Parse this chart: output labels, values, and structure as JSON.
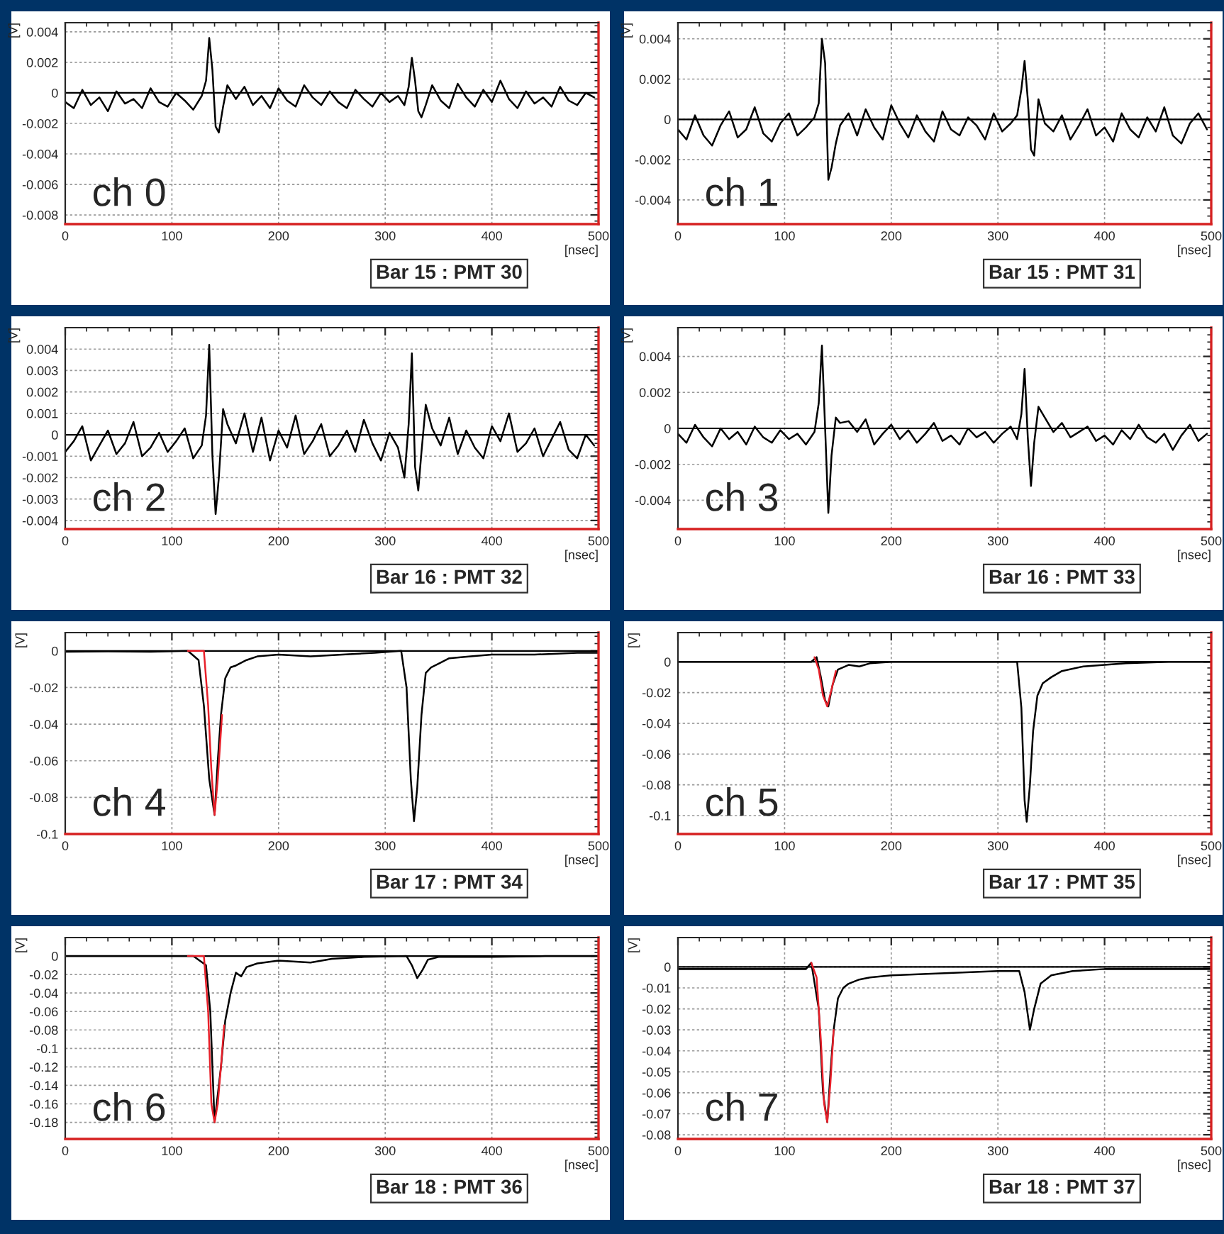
{
  "chart_data": [
    {
      "type": "line",
      "title": "Bar 15 : PMT 30",
      "xlabel": "[nsec]",
      "ylabel": "[V]",
      "annotations": [
        "ch 0"
      ],
      "grid": true,
      "legend": false,
      "xlim": [
        0,
        500
      ],
      "xticks": [
        0,
        100,
        200,
        300,
        400,
        500
      ],
      "ylim": [
        -0.0086,
        0.0046
      ],
      "yticks": [
        -0.008,
        -0.006,
        -0.004,
        -0.002,
        0,
        0.002,
        0.004
      ],
      "ref_lines": [
        {
          "axis": "y",
          "value": 0
        }
      ],
      "x": [
        0,
        8,
        16,
        24,
        32,
        40,
        48,
        56,
        64,
        72,
        80,
        88,
        96,
        104,
        112,
        120,
        128,
        132,
        135,
        138,
        141,
        144,
        148,
        152,
        160,
        168,
        176,
        184,
        192,
        200,
        208,
        216,
        224,
        232,
        240,
        248,
        256,
        264,
        272,
        280,
        288,
        296,
        304,
        312,
        318,
        322,
        325,
        328,
        331,
        334,
        338,
        344,
        352,
        360,
        368,
        376,
        384,
        392,
        400,
        408,
        416,
        424,
        432,
        440,
        448,
        456,
        464,
        472,
        480,
        488,
        496
      ],
      "series": [
        {
          "type": "line",
          "color": "#000000",
          "values": [
            -0.0006,
            -0.001,
            0.0002,
            -0.0008,
            -0.0003,
            -0.0012,
            0.0001,
            -0.0007,
            -0.0004,
            -0.001,
            0.0003,
            -0.0006,
            -0.0009,
            0.0,
            -0.0005,
            -0.0011,
            -0.0002,
            0.0008,
            0.0036,
            0.0015,
            -0.0022,
            -0.0026,
            -0.0009,
            0.0005,
            -0.0004,
            0.0004,
            -0.0008,
            -0.0002,
            -0.001,
            0.0003,
            -0.0005,
            -0.0009,
            0.0005,
            -0.0003,
            -0.0008,
            0.0001,
            -0.0006,
            -0.001,
            0.0002,
            -0.0004,
            -0.0009,
            0.0,
            -0.0006,
            -0.0002,
            -0.0008,
            0.0004,
            0.0023,
            0.0008,
            -0.0012,
            -0.0016,
            -0.0008,
            0.0005,
            -0.0005,
            -0.001,
            0.0006,
            -0.0003,
            -0.0009,
            0.0002,
            -0.0006,
            0.0008,
            -0.0004,
            -0.001,
            0.0001,
            -0.0007,
            -0.0003,
            -0.0009,
            0.0004,
            -0.0005,
            -0.0008,
            0.0,
            -0.0003
          ]
        }
      ]
    },
    {
      "type": "line",
      "title": "Bar 15 : PMT 31",
      "xlabel": "[nsec]",
      "ylabel": "[V]",
      "annotations": [
        "ch 1"
      ],
      "grid": true,
      "legend": false,
      "xlim": [
        0,
        500
      ],
      "xticks": [
        0,
        100,
        200,
        300,
        400,
        500
      ],
      "ylim": [
        -0.0052,
        0.0048
      ],
      "yticks": [
        -0.004,
        -0.002,
        0,
        0.002,
        0.004
      ],
      "ref_lines": [
        {
          "axis": "y",
          "value": 0
        }
      ],
      "x": [
        0,
        8,
        16,
        24,
        32,
        40,
        48,
        56,
        64,
        72,
        80,
        88,
        96,
        104,
        112,
        120,
        128,
        132,
        135,
        138,
        141,
        144,
        148,
        152,
        160,
        168,
        176,
        184,
        192,
        200,
        208,
        216,
        224,
        232,
        240,
        248,
        256,
        264,
        272,
        280,
        288,
        296,
        304,
        312,
        318,
        322,
        325,
        328,
        331,
        334,
        338,
        344,
        352,
        360,
        368,
        376,
        384,
        392,
        400,
        408,
        416,
        424,
        432,
        440,
        448,
        456,
        464,
        472,
        480,
        488,
        496
      ],
      "series": [
        {
          "type": "line",
          "color": "#000000",
          "values": [
            -0.0005,
            -0.001,
            0.0002,
            -0.0008,
            -0.0013,
            -0.0003,
            0.0004,
            -0.0009,
            -0.0005,
            0.0006,
            -0.0007,
            -0.0011,
            -0.0002,
            0.0003,
            -0.0008,
            -0.0004,
            0.0001,
            0.0008,
            0.004,
            0.0028,
            -0.003,
            -0.0024,
            -0.0012,
            -0.0003,
            0.0003,
            -0.0008,
            0.0005,
            -0.0004,
            -0.001,
            0.0007,
            -0.0002,
            -0.0009,
            0.0002,
            -0.0006,
            -0.0011,
            0.0004,
            -0.0005,
            -0.0008,
            0.0001,
            -0.0003,
            -0.001,
            0.0003,
            -0.0006,
            -0.0002,
            0.0002,
            0.0015,
            0.0029,
            0.001,
            -0.0015,
            -0.0018,
            0.001,
            -0.0002,
            -0.0006,
            0.0002,
            -0.001,
            -0.0003,
            0.0005,
            -0.0008,
            -0.0004,
            -0.0011,
            0.0003,
            -0.0005,
            -0.0009,
            0.0001,
            -0.0006,
            0.0006,
            -0.0008,
            -0.0012,
            -0.0002,
            0.0003,
            -0.0005
          ]
        }
      ]
    },
    {
      "type": "line",
      "title": "Bar 16 : PMT 32",
      "xlabel": "[nsec]",
      "ylabel": "[V]",
      "annotations": [
        "ch 2"
      ],
      "grid": true,
      "legend": false,
      "xlim": [
        0,
        500
      ],
      "xticks": [
        0,
        100,
        200,
        300,
        400,
        500
      ],
      "ylim": [
        -0.0044,
        0.005
      ],
      "yticks": [
        -0.004,
        -0.003,
        -0.002,
        -0.001,
        0,
        0.001,
        0.002,
        0.003,
        0.004
      ],
      "ref_lines": [
        {
          "axis": "y",
          "value": 0
        }
      ],
      "x": [
        0,
        8,
        16,
        24,
        32,
        40,
        48,
        56,
        64,
        72,
        80,
        88,
        96,
        104,
        112,
        120,
        128,
        132,
        135,
        138,
        141,
        144,
        148,
        152,
        160,
        168,
        176,
        184,
        192,
        200,
        208,
        216,
        224,
        232,
        240,
        248,
        256,
        264,
        272,
        280,
        288,
        296,
        304,
        312,
        318,
        322,
        325,
        328,
        331,
        334,
        338,
        344,
        352,
        360,
        368,
        376,
        384,
        392,
        400,
        408,
        416,
        424,
        432,
        440,
        448,
        456,
        464,
        472,
        480,
        488,
        496
      ],
      "series": [
        {
          "type": "line",
          "color": "#000000",
          "values": [
            -0.0008,
            -0.0003,
            0.0004,
            -0.0012,
            -0.0005,
            0.0002,
            -0.0009,
            -0.0004,
            0.0006,
            -0.001,
            -0.0006,
            0.0001,
            -0.0008,
            -0.0003,
            0.0003,
            -0.0011,
            -0.0005,
            0.0009,
            0.0042,
            -0.001,
            -0.0037,
            -0.002,
            0.0012,
            0.0005,
            -0.0004,
            0.001,
            -0.0008,
            0.0008,
            -0.0012,
            0.0002,
            -0.0006,
            0.0009,
            -0.0009,
            -0.0003,
            0.0005,
            -0.001,
            -0.0005,
            0.0002,
            -0.0008,
            0.0007,
            -0.0004,
            -0.0012,
            0.0001,
            -0.0006,
            -0.002,
            0.0005,
            0.0038,
            -0.0015,
            -0.0026,
            -0.0008,
            0.0014,
            0.0003,
            -0.0005,
            0.0008,
            -0.0009,
            0.0002,
            -0.0006,
            -0.0011,
            0.0004,
            -0.0003,
            0.001,
            -0.0008,
            -0.0004,
            0.0003,
            -0.001,
            -0.0002,
            0.0006,
            -0.0007,
            -0.0011,
            0.0,
            -0.0005
          ]
        }
      ]
    },
    {
      "type": "line",
      "title": "Bar 16 : PMT 33",
      "xlabel": "[nsec]",
      "ylabel": "[V]",
      "annotations": [
        "ch 3"
      ],
      "grid": true,
      "legend": false,
      "xlim": [
        0,
        500
      ],
      "xticks": [
        0,
        100,
        200,
        300,
        400,
        500
      ],
      "ylim": [
        -0.0056,
        0.0056
      ],
      "yticks": [
        -0.004,
        -0.002,
        0,
        0.002,
        0.004
      ],
      "ref_lines": [
        {
          "axis": "y",
          "value": 0
        }
      ],
      "x": [
        0,
        8,
        16,
        24,
        32,
        40,
        48,
        56,
        64,
        72,
        80,
        88,
        96,
        104,
        112,
        120,
        128,
        132,
        135,
        138,
        141,
        144,
        148,
        152,
        160,
        168,
        176,
        184,
        192,
        200,
        208,
        216,
        224,
        232,
        240,
        248,
        256,
        264,
        272,
        280,
        288,
        296,
        304,
        312,
        318,
        322,
        325,
        328,
        331,
        334,
        338,
        344,
        352,
        360,
        368,
        376,
        384,
        392,
        400,
        408,
        416,
        424,
        432,
        440,
        448,
        456,
        464,
        472,
        480,
        488,
        496
      ],
      "series": [
        {
          "type": "line",
          "color": "#000000",
          "values": [
            -0.0003,
            -0.0008,
            0.0002,
            -0.0005,
            -0.001,
            0.0,
            -0.0006,
            -0.0002,
            -0.0009,
            0.0001,
            -0.0005,
            -0.0008,
            -0.0001,
            -0.0006,
            -0.0003,
            -0.0009,
            -0.0002,
            0.0014,
            0.0046,
            0.0,
            -0.0047,
            -0.0015,
            0.0006,
            0.0003,
            0.0004,
            -0.0002,
            0.0005,
            -0.0009,
            -0.0003,
            0.0002,
            -0.0006,
            -0.0001,
            -0.0008,
            -0.0003,
            0.0003,
            -0.0007,
            -0.0004,
            -0.0009,
            0.0,
            -0.0005,
            -0.0002,
            -0.0008,
            -0.0003,
            0.0001,
            -0.0006,
            0.0008,
            0.0033,
            -0.0005,
            -0.0032,
            -0.0008,
            0.0012,
            0.0006,
            -0.0002,
            0.0003,
            -0.0005,
            -0.0002,
            0.0001,
            -0.0007,
            -0.0004,
            -0.0009,
            -0.0001,
            -0.0006,
            0.0002,
            -0.0005,
            -0.0008,
            -0.0003,
            -0.0012,
            -0.0004,
            0.0002,
            -0.0007,
            -0.0003
          ]
        }
      ]
    },
    {
      "type": "line",
      "title": "Bar 17 : PMT 34",
      "xlabel": "[nsec]",
      "ylabel": "[V]",
      "annotations": [
        "ch 4"
      ],
      "grid": true,
      "legend": false,
      "xlim": [
        0,
        500
      ],
      "xticks": [
        0,
        100,
        200,
        300,
        400,
        500
      ],
      "ylim": [
        -0.1,
        0.01
      ],
      "yticks": [
        -0.1,
        -0.08,
        -0.06,
        -0.04,
        -0.02,
        0
      ],
      "ref_lines": [
        {
          "axis": "y",
          "value": 0
        }
      ],
      "series": [
        {
          "type": "line",
          "color": "#000000",
          "x": [
            0,
            40,
            80,
            115,
            125,
            130,
            135,
            140,
            143,
            146,
            150,
            155,
            160,
            170,
            180,
            200,
            230,
            260,
            290,
            315,
            320,
            324,
            327,
            330,
            334,
            338,
            343,
            350,
            360,
            380,
            400,
            440,
            480,
            500
          ],
          "values": [
            -0.0005,
            -0.0003,
            -0.0005,
            0,
            -0.005,
            -0.03,
            -0.07,
            -0.0896,
            -0.06,
            -0.035,
            -0.015,
            -0.009,
            -0.008,
            -0.005,
            -0.003,
            -0.002,
            -0.003,
            -0.002,
            -0.001,
            0,
            -0.02,
            -0.07,
            -0.093,
            -0.075,
            -0.035,
            -0.012,
            -0.009,
            -0.007,
            -0.004,
            -0.003,
            -0.002,
            -0.002,
            -0.001,
            -0.001
          ]
        },
        {
          "type": "line",
          "color": "#e8202a",
          "x": [
            115,
            130,
            134,
            137,
            140,
            143,
            147
          ],
          "values": [
            0,
            0,
            -0.03,
            -0.065,
            -0.0896,
            -0.07,
            -0.035
          ]
        }
      ]
    },
    {
      "type": "line",
      "title": "Bar 17 : PMT 35",
      "xlabel": "[nsec]",
      "ylabel": "[V]",
      "annotations": [
        "ch 5"
      ],
      "grid": true,
      "legend": false,
      "xlim": [
        0,
        500
      ],
      "xticks": [
        0,
        100,
        200,
        300,
        400,
        500
      ],
      "ylim": [
        -0.112,
        0.019
      ],
      "yticks": [
        -0.1,
        -0.08,
        -0.06,
        -0.04,
        -0.02,
        0
      ],
      "ref_lines": [
        {
          "axis": "y",
          "value": 0
        }
      ],
      "series": [
        {
          "type": "line",
          "color": "#000000",
          "x": [
            0,
            50,
            100,
            125,
            130,
            134,
            138,
            141,
            145,
            150,
            160,
            170,
            180,
            200,
            250,
            300,
            318,
            322,
            325,
            327,
            330,
            333,
            337,
            342,
            350,
            360,
            380,
            420,
            460,
            500
          ],
          "values": [
            0,
            0,
            0,
            0,
            0.003,
            -0.01,
            -0.025,
            -0.029,
            -0.015,
            -0.005,
            -0.002,
            -0.003,
            -0.001,
            0,
            0,
            0,
            0,
            -0.03,
            -0.09,
            -0.104,
            -0.08,
            -0.045,
            -0.022,
            -0.014,
            -0.01,
            -0.006,
            -0.003,
            -0.001,
            0,
            0
          ]
        },
        {
          "type": "line",
          "color": "#e8202a",
          "x": [
            128,
            132,
            136,
            140,
            144,
            148
          ],
          "values": [
            0.003,
            -0.005,
            -0.022,
            -0.029,
            -0.018,
            -0.006
          ]
        }
      ]
    },
    {
      "type": "line",
      "title": "Bar 18 : PMT 36",
      "xlabel": "[nsec]",
      "ylabel": "[V]",
      "annotations": [
        "ch 6"
      ],
      "grid": true,
      "legend": false,
      "xlim": [
        0,
        500
      ],
      "xticks": [
        0,
        100,
        200,
        300,
        400,
        500
      ],
      "ylim": [
        -0.198,
        0.02
      ],
      "yticks": [
        -0.18,
        -0.16,
        -0.14,
        -0.12,
        -0.1,
        -0.08,
        -0.06,
        -0.04,
        -0.02,
        0
      ],
      "ref_lines": [
        {
          "axis": "y",
          "value": 0
        }
      ],
      "series": [
        {
          "type": "line",
          "color": "#000000",
          "x": [
            0,
            50,
            100,
            120,
            132,
            136,
            140,
            143,
            146,
            150,
            155,
            160,
            165,
            170,
            180,
            200,
            230,
            250,
            280,
            320,
            325,
            330,
            335,
            340,
            350,
            400,
            450,
            500
          ],
          "values": [
            0,
            0,
            0,
            0,
            -0.01,
            -0.06,
            -0.18,
            -0.15,
            -0.12,
            -0.07,
            -0.04,
            -0.018,
            -0.022,
            -0.012,
            -0.008,
            -0.005,
            -0.007,
            -0.003,
            -0.001,
            0,
            -0.01,
            -0.024,
            -0.015,
            -0.004,
            -0.001,
            -0.001,
            0,
            0
          ]
        },
        {
          "type": "line",
          "color": "#e8202a",
          "x": [
            115,
            130,
            134,
            137,
            140,
            143,
            146,
            149
          ],
          "values": [
            0,
            0,
            -0.06,
            -0.16,
            -0.18,
            -0.16,
            -0.12,
            -0.075
          ]
        }
      ]
    },
    {
      "type": "line",
      "title": "Bar 18 : PMT 37",
      "xlabel": "[nsec]",
      "ylabel": "[V]",
      "annotations": [
        "ch 7"
      ],
      "grid": true,
      "legend": false,
      "xlim": [
        0,
        500
      ],
      "xticks": [
        0,
        100,
        200,
        300,
        400,
        500
      ],
      "ylim": [
        -0.082,
        0.014
      ],
      "yticks": [
        -0.08,
        -0.07,
        -0.06,
        -0.05,
        -0.04,
        -0.03,
        -0.02,
        -0.01,
        0
      ],
      "ref_lines": [
        {
          "axis": "y",
          "value": 0
        }
      ],
      "series": [
        {
          "type": "line",
          "color": "#000000",
          "x": [
            0,
            50,
            100,
            120,
            125,
            132,
            136,
            140,
            143,
            146,
            150,
            155,
            160,
            170,
            180,
            200,
            250,
            300,
            320,
            325,
            330,
            334,
            340,
            350,
            370,
            400,
            450,
            500
          ],
          "values": [
            -0.001,
            -0.001,
            -0.001,
            -0.001,
            0.002,
            -0.02,
            -0.06,
            -0.074,
            -0.05,
            -0.03,
            -0.015,
            -0.01,
            -0.008,
            -0.006,
            -0.005,
            -0.004,
            -0.003,
            -0.002,
            -0.002,
            -0.012,
            -0.03,
            -0.02,
            -0.008,
            -0.004,
            -0.002,
            -0.001,
            -0.001,
            -0.001
          ]
        },
        {
          "type": "line",
          "color": "#e8202a",
          "x": [
            125,
            130,
            134,
            137,
            140,
            143,
            146
          ],
          "values": [
            0.002,
            -0.005,
            -0.035,
            -0.065,
            -0.074,
            -0.055,
            -0.03
          ]
        }
      ]
    }
  ]
}
